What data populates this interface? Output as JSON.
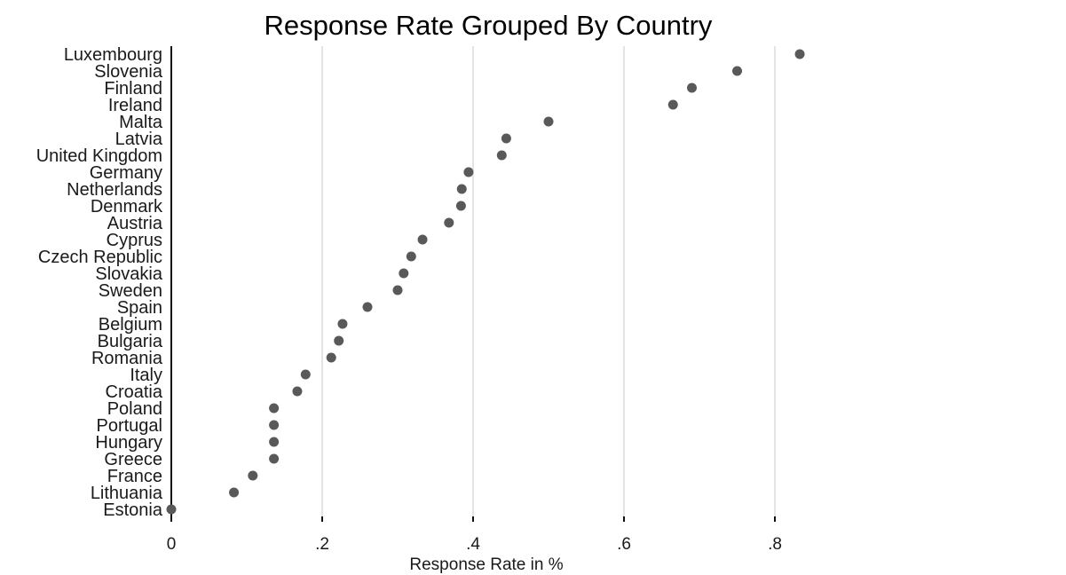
{
  "chart_data": {
    "type": "scatter",
    "title": "Response Rate Grouped By Country",
    "xlabel": "Response Rate in %",
    "ylabel": "",
    "xlim": [
      0,
      1.0
    ],
    "xticks": [
      {
        "value": 0,
        "label": "0"
      },
      {
        "value": 0.2,
        "label": ".2"
      },
      {
        "value": 0.4,
        "label": ".4"
      },
      {
        "value": 0.6,
        "label": ".6"
      },
      {
        "value": 0.8,
        "label": ".8"
      }
    ],
    "grid": true,
    "legend": "none",
    "marker_color": "#595959",
    "categories": [
      "Luxembourg",
      "Slovenia",
      "Finland",
      "Ireland",
      "Malta",
      "Latvia",
      "United Kingdom",
      "Germany",
      "Netherlands",
      "Denmark",
      "Austria",
      "Cyprus",
      "Czech Republic",
      "Slovakia",
      "Sweden",
      "Spain",
      "Belgium",
      "Bulgaria",
      "Romania",
      "Italy",
      "Croatia",
      "Poland",
      "Portugal",
      "Hungary",
      "Greece",
      "France",
      "Lithuania",
      "Estonia"
    ],
    "values": [
      0.833,
      0.75,
      0.69,
      0.665,
      0.5,
      0.444,
      0.438,
      0.394,
      0.385,
      0.384,
      0.368,
      0.333,
      0.318,
      0.308,
      0.3,
      0.26,
      0.227,
      0.222,
      0.212,
      0.178,
      0.167,
      0.136,
      0.136,
      0.136,
      0.136,
      0.108,
      0.083,
      0.0
    ]
  }
}
